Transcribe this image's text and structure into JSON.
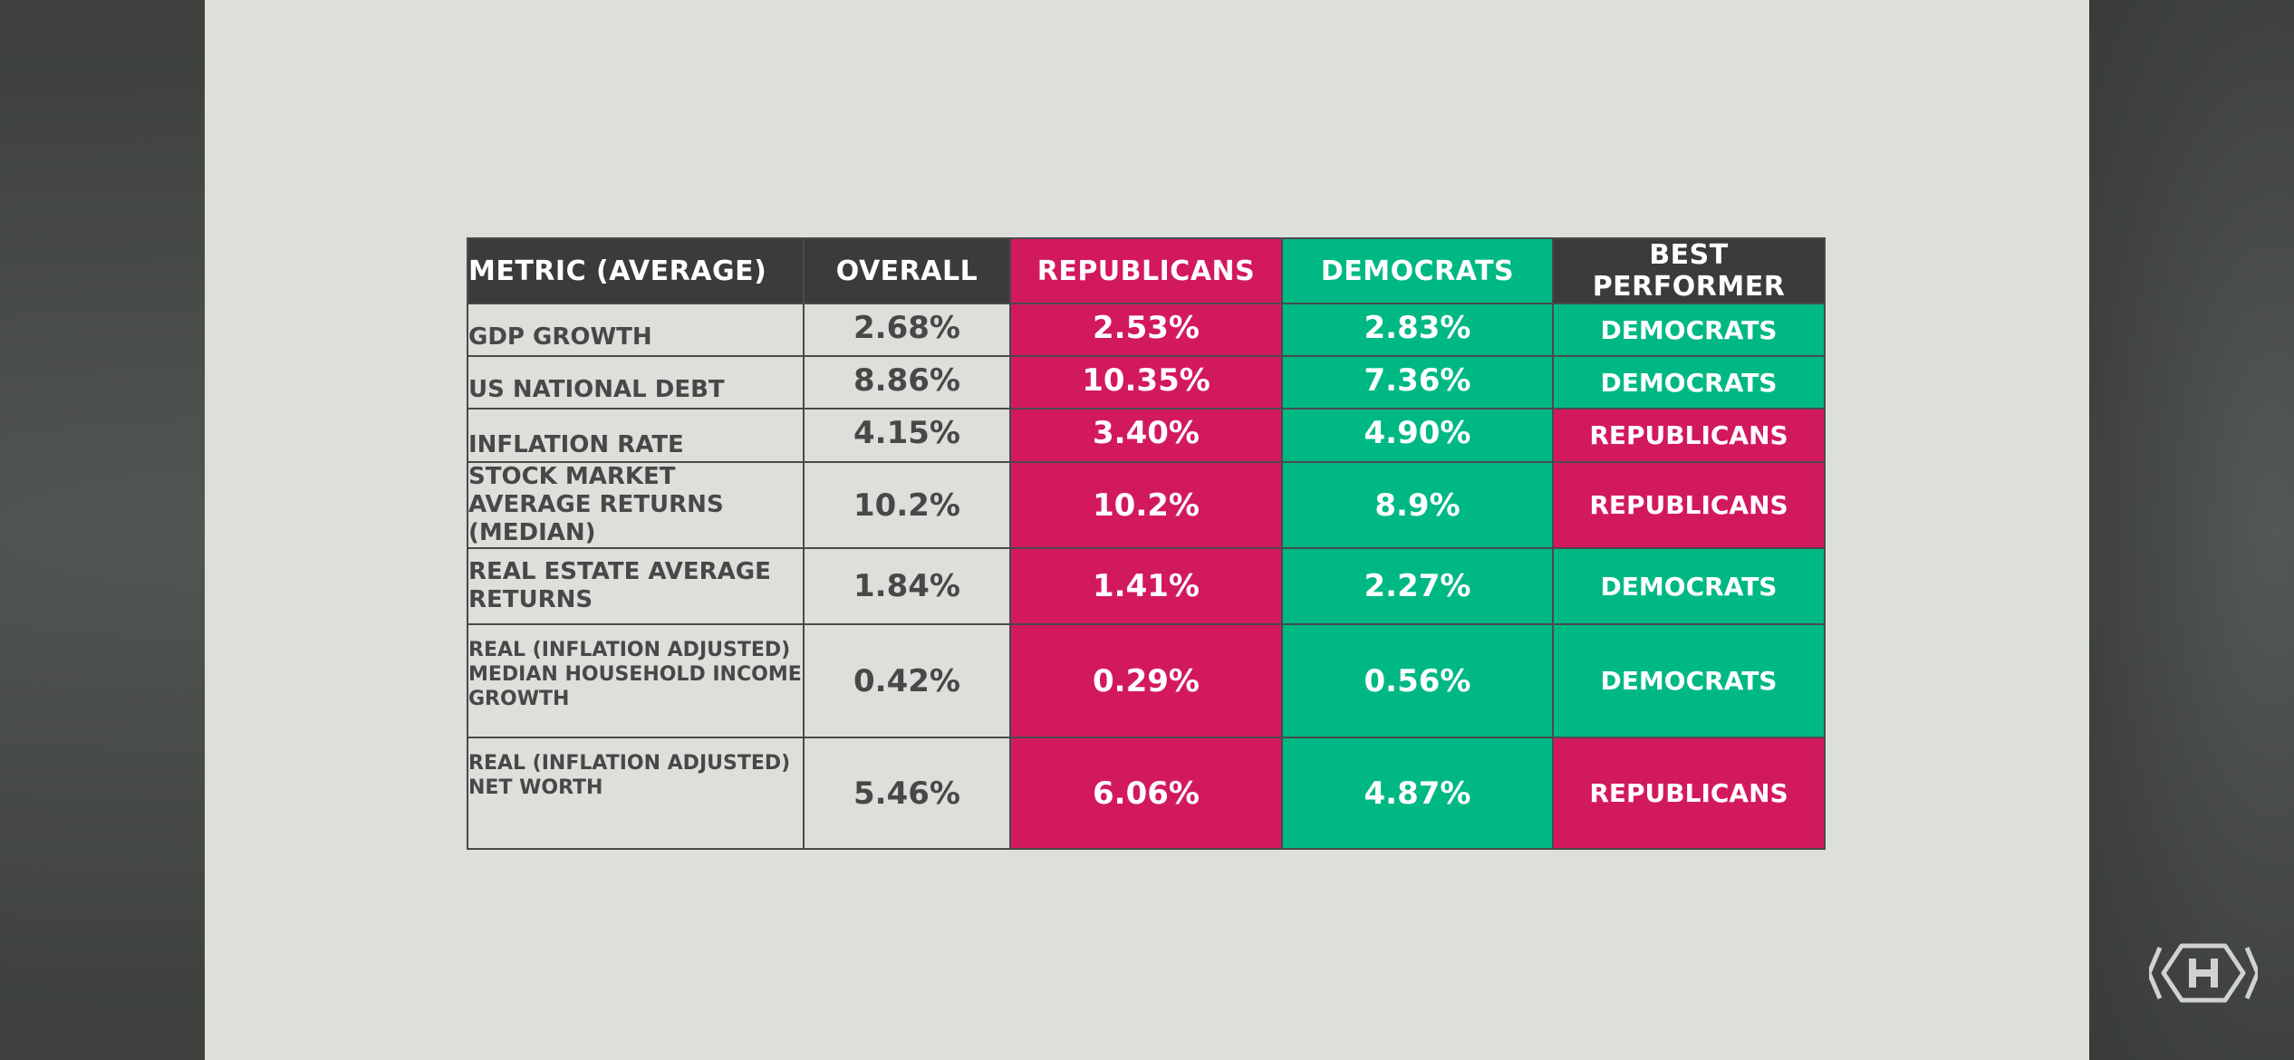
{
  "table": {
    "headers": {
      "metric": "METRIC (AVERAGE)",
      "overall": "OVERALL",
      "republicans": "REPUBLICANS",
      "democrats": "DEMOCRATS",
      "best": "BEST PERFORMER"
    },
    "rows": [
      {
        "metric": "GDP GROWTH",
        "overall": "2.68%",
        "republicans": "2.53%",
        "democrats": "2.83%",
        "best": "DEMOCRATS"
      },
      {
        "metric": "US NATIONAL DEBT",
        "overall": "8.86%",
        "republicans": "10.35%",
        "democrats": "7.36%",
        "best": "DEMOCRATS"
      },
      {
        "metric": "INFLATION RATE",
        "overall": "4.15%",
        "republicans": "3.40%",
        "democrats": "4.90%",
        "best": "REPUBLICANS"
      },
      {
        "metric": "STOCK MARKET AVERAGE RETURNS (MEDIAN)",
        "overall": "10.2%",
        "republicans": "10.2%",
        "democrats": "8.9%",
        "best": "REPUBLICANS"
      },
      {
        "metric": "REAL ESTATE AVERAGE RETURNS",
        "overall": "1.84%",
        "republicans": "1.41%",
        "democrats": "2.27%",
        "best": "DEMOCRATS"
      },
      {
        "metric": "REAL (INFLATION ADJUSTED) MEDIAN HOUSEHOLD INCOME GROWTH",
        "overall": "0.42%",
        "republicans": "0.29%",
        "democrats": "0.56%",
        "best": "DEMOCRATS"
      },
      {
        "metric": "REAL (INFLATION ADJUSTED) NET WORTH",
        "overall": "5.46%",
        "republicans": "6.06%",
        "democrats": "4.87%",
        "best": "REPUBLICANS"
      }
    ]
  },
  "colors": {
    "republicans": "#d3195e",
    "democrats": "#00b884",
    "header_dark": "#3b3b3b",
    "slide_bg": "#dcdfda"
  },
  "logo": {
    "icon": "hexagon-h-logo-icon"
  }
}
